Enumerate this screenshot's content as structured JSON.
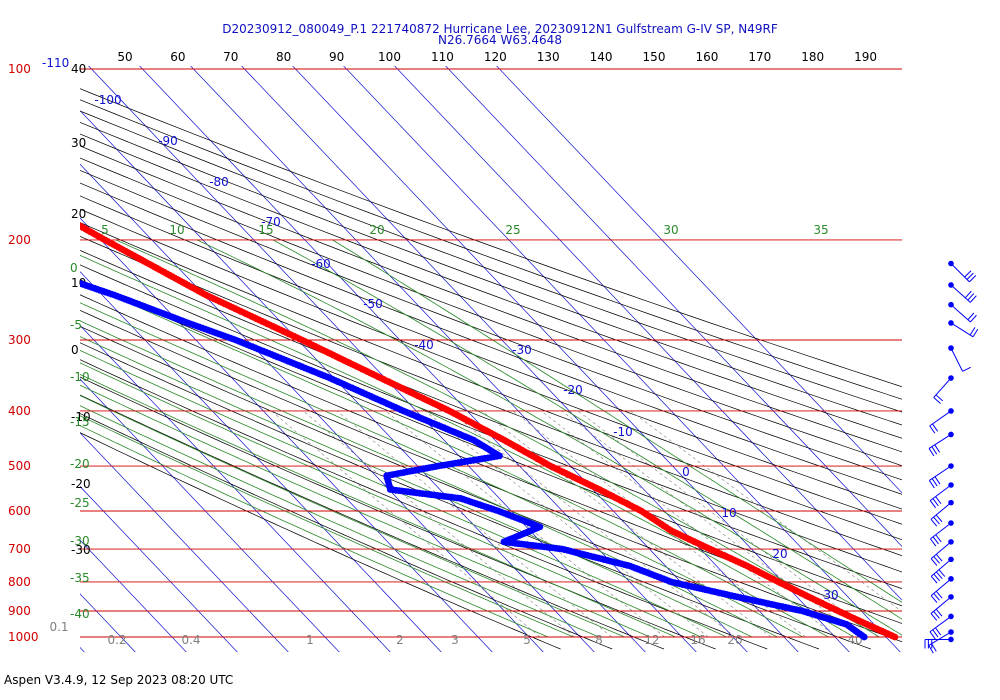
{
  "title_line1": "D20230912_080049_P.1 221740872 Hurricane Lee, 20230912N1 Gulfstream G-IV SP, N49RF",
  "title_line2": "N26.7664 W63.4648",
  "footer": "Aspen V3.4.9, 12 Sep 2023  08:20 UTC",
  "colors": {
    "isobar": "#d00000",
    "isotherm": "#1010d0",
    "dry_adiabat": "#000000",
    "moist_adiabat": "#2a8a2a",
    "mixing_ratio": "#808080",
    "temperature": "#ff0000",
    "dewpoint": "#0000ff",
    "wind": "#0000ff"
  },
  "chart_data": {
    "type": "skew-t",
    "pressure_levels": [
      "100",
      "200",
      "300",
      "400",
      "500",
      "600",
      "700",
      "800",
      "900",
      "1000"
    ],
    "pressure_values": [
      100,
      200,
      300,
      400,
      500,
      600,
      700,
      800,
      900,
      1000
    ],
    "top_left_label": "-110",
    "top_axis_labels": [
      "50",
      "60",
      "70",
      "80",
      "90",
      "100",
      "110",
      "120",
      "130",
      "140",
      "150",
      "160",
      "170",
      "180",
      "190"
    ],
    "left_axis_labels": [
      "40",
      "30",
      "20",
      "10",
      "0",
      "-10",
      "-20",
      "-30"
    ],
    "isotherm_labels": [
      "-100",
      "-90",
      "-80",
      "-70",
      "-60",
      "-50",
      "-40",
      "-30",
      "-20",
      "-10",
      "0",
      "10",
      "20",
      "30"
    ],
    "moist_adiabat_labels": [
      "5",
      "10",
      "15",
      "20",
      "25",
      "30",
      "35"
    ],
    "left_green_labels": [
      "0",
      "-5",
      "-10",
      "-15",
      "-20",
      "-25",
      "-30",
      "-35",
      "-40"
    ],
    "mixing_ratio_labels": [
      "0.1",
      "0.2",
      "0.4",
      "1",
      "2",
      "3",
      "5",
      "8",
      "12",
      "16",
      "20",
      "40"
    ],
    "temperature_profile": [
      {
        "p": 185,
        "t": -52
      },
      {
        "p": 200,
        "t": -49
      },
      {
        "p": 250,
        "t": -40
      },
      {
        "p": 300,
        "t": -30
      },
      {
        "p": 350,
        "t": -22
      },
      {
        "p": 400,
        "t": -15
      },
      {
        "p": 450,
        "t": -10
      },
      {
        "p": 500,
        "t": -6
      },
      {
        "p": 550,
        "t": -1
      },
      {
        "p": 600,
        "t": 3
      },
      {
        "p": 650,
        "t": 5
      },
      {
        "p": 700,
        "t": 9
      },
      {
        "p": 750,
        "t": 13
      },
      {
        "p": 800,
        "t": 16
      },
      {
        "p": 850,
        "t": 19
      },
      {
        "p": 900,
        "t": 22
      },
      {
        "p": 950,
        "t": 25
      },
      {
        "p": 1000,
        "t": 28
      }
    ],
    "dewpoint_profile": [
      {
        "p": 220,
        "t": -70
      },
      {
        "p": 250,
        "t": -58
      },
      {
        "p": 280,
        "t": -49
      },
      {
        "p": 300,
        "t": -43
      },
      {
        "p": 350,
        "t": -32
      },
      {
        "p": 400,
        "t": -24
      },
      {
        "p": 450,
        "t": -16
      },
      {
        "p": 480,
        "t": -14
      },
      {
        "p": 500,
        "t": -28
      },
      {
        "p": 520,
        "t": -40
      },
      {
        "p": 550,
        "t": -42
      },
      {
        "p": 570,
        "t": -30
      },
      {
        "p": 600,
        "t": -25
      },
      {
        "p": 640,
        "t": -20
      },
      {
        "p": 680,
        "t": -30
      },
      {
        "p": 700,
        "t": -20
      },
      {
        "p": 750,
        "t": -10
      },
      {
        "p": 800,
        "t": -5
      },
      {
        "p": 850,
        "t": 5
      },
      {
        "p": 900,
        "t": 15
      },
      {
        "p": 950,
        "t": 21
      },
      {
        "p": 1000,
        "t": 22
      }
    ],
    "wind_barbs": [
      {
        "p": 220,
        "u": -20,
        "v": 20
      },
      {
        "p": 240,
        "u": -20,
        "v": 18
      },
      {
        "p": 260,
        "u": -18,
        "v": 16
      },
      {
        "p": 280,
        "u": -16,
        "v": 10
      },
      {
        "p": 310,
        "u": -4,
        "v": 8
      },
      {
        "p": 350,
        "u": 16,
        "v": 18
      },
      {
        "p": 400,
        "u": 20,
        "v": 14
      },
      {
        "p": 440,
        "u": 22,
        "v": 14
      },
      {
        "p": 500,
        "u": 24,
        "v": 16
      },
      {
        "p": 540,
        "u": 24,
        "v": 18
      },
      {
        "p": 580,
        "u": 24,
        "v": 20
      },
      {
        "p": 630,
        "u": 26,
        "v": 20
      },
      {
        "p": 680,
        "u": 26,
        "v": 22
      },
      {
        "p": 730,
        "u": 28,
        "v": 24
      },
      {
        "p": 790,
        "u": 26,
        "v": 22
      },
      {
        "p": 850,
        "u": 24,
        "v": 20
      },
      {
        "p": 920,
        "u": 22,
        "v": 16
      },
      {
        "p": 980,
        "u": 20,
        "v": 12
      },
      {
        "p": 1010,
        "u": 30,
        "v": 0
      }
    ]
  }
}
